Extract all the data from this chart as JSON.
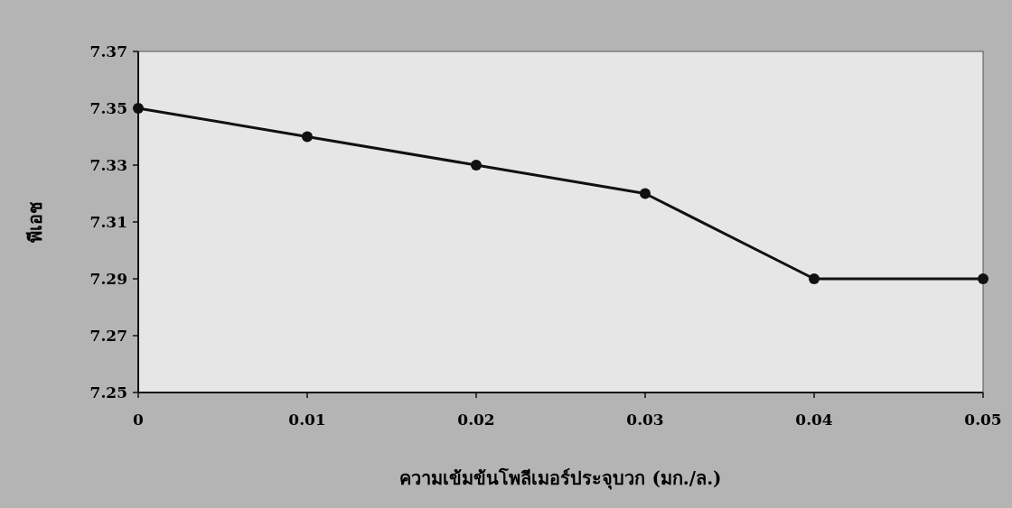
{
  "chart_data": {
    "type": "line",
    "xlabel": "ความเข้มข้นโพลีเมอร์ประจุบวก (มก./ล.)",
    "ylabel": "พีเอช",
    "x": [
      0,
      0.01,
      0.02,
      0.03,
      0.04,
      0.05
    ],
    "series": [
      {
        "color": "#111111",
        "values": [
          7.35,
          7.34,
          7.33,
          7.32,
          7.29,
          7.29
        ]
      }
    ],
    "xlim": [
      0,
      0.05
    ],
    "xticks": [
      0,
      0.01,
      0.02,
      0.03,
      0.04,
      0.05
    ],
    "ylim": [
      7.25,
      7.37
    ],
    "yticks": [
      7.25,
      7.27,
      7.29,
      7.31,
      7.33,
      7.35,
      7.37
    ],
    "marker": "circle",
    "line_style": "solid",
    "grid": false
  }
}
